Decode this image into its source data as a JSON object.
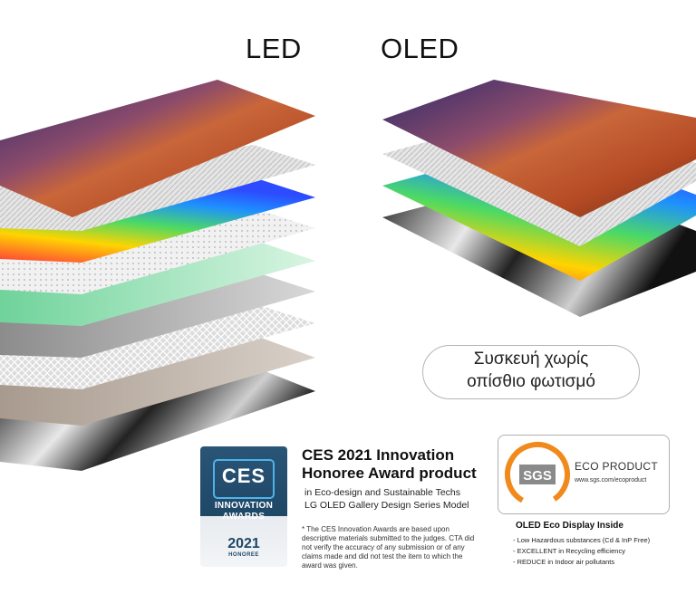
{
  "titles": {
    "led": "LED",
    "oled": "OLED"
  },
  "oled_note": {
    "line1": "Συσκευή χωρίς",
    "line2": "οπίσθιο φωτισμό"
  },
  "ces": {
    "logo_text": "CES",
    "badge_line1": "INNOVATION",
    "badge_line2": "AWARDS",
    "year": "2021",
    "honoree": "HONOREE",
    "heading_line1": "CES 2021 Innovation",
    "heading_line2": "Honoree Award product",
    "sub_line1": "in Eco-design and Sustainable Techs",
    "sub_line2": "LG OLED Gallery Design Series Model",
    "note": "* The CES Innovation Awards are based upon descriptive materials submitted to the judges. CTA did not verify the accuracy of any submission or of any claims made and did not test the item to which the award was given."
  },
  "sgs": {
    "logo_text": "SGS",
    "label": "ECO PRODUCT",
    "url": "www.sgs.com/ecoproduct",
    "eco_title": "OLED Eco Display Inside",
    "items": [
      "- Low Hazardous substances (Cd & InP Free)",
      "- EXCELLENT in Recycling efficiency",
      "- REDUCE in Indoor air pollutants"
    ]
  },
  "colors": {
    "ces_blue": "#1f4766",
    "sgs_orange": "#f08a1c",
    "sgs_gray": "#8a8a8a"
  }
}
